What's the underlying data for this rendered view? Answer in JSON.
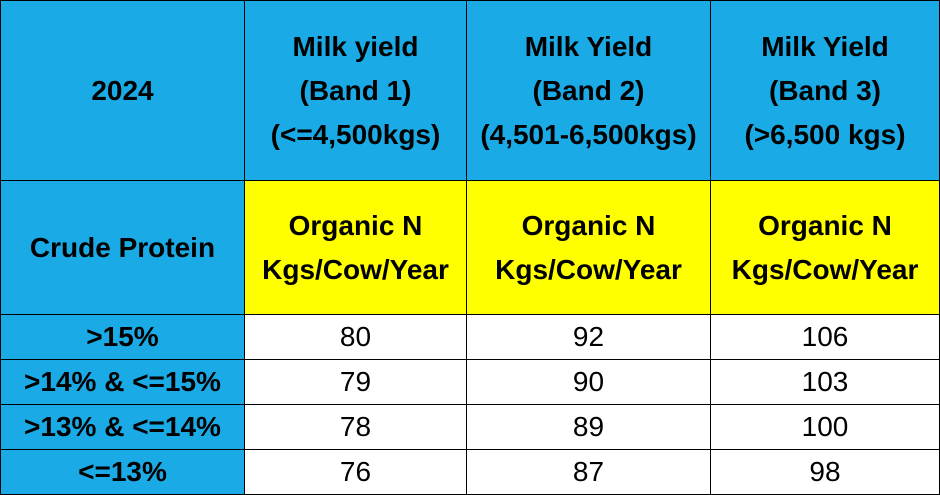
{
  "corner_top": "2024",
  "corner_bottom": "Crude Protein",
  "bands": [
    {
      "line1": "Milk yield",
      "line2": "(Band 1)",
      "line3": "(<=4,500kgs)"
    },
    {
      "line1": "Milk Yield",
      "line2": "(Band 2)",
      "line3": "(4,501-6,500kgs)"
    },
    {
      "line1": "Milk Yield",
      "line2": "(Band 3)",
      "line3": "(>6,500 kgs)"
    }
  ],
  "unit_headers": [
    {
      "line1": "Organic N",
      "line2": "Kgs/Cow/Year"
    },
    {
      "line1": "Organic N",
      "line2": "Kgs/Cow/Year"
    },
    {
      "line1": "Organic N",
      "line2": "Kgs/Cow/Year"
    }
  ],
  "rows": [
    {
      "label": ">15%",
      "values": [
        "80",
        "92",
        "106"
      ]
    },
    {
      "label": ">14% & <=15%",
      "values": [
        "79",
        "90",
        "103"
      ]
    },
    {
      "label": ">13% & <=14%",
      "values": [
        "78",
        "89",
        "100"
      ]
    },
    {
      "label": "<=13%",
      "values": [
        "76",
        "87",
        "98"
      ]
    }
  ],
  "colors": {
    "header_blue": "#1aabe6",
    "unit_yellow": "#ffff00",
    "body_white": "#ffffff",
    "border": "#000000"
  }
}
